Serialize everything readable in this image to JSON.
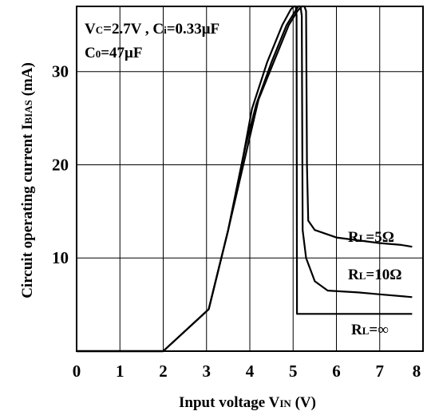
{
  "chart_data": {
    "type": "line",
    "title": "",
    "xlabel": {
      "main": "Input voltage V",
      "sub": "IN",
      "unit": " (V)"
    },
    "ylabel": {
      "main": "Circuit operating current I",
      "sub": "BIAS",
      "unit": " (mA)"
    },
    "xlim": [
      0,
      8
    ],
    "ylim": [
      0,
      37
    ],
    "x_ticks": [
      0,
      1,
      2,
      3,
      4,
      5,
      6,
      7,
      8
    ],
    "y_ticks": [
      10,
      20,
      30
    ],
    "grid": true,
    "annotations": {
      "line1": {
        "a": "V",
        "a_sub": "C",
        "b": "=2.7V , C",
        "b_sub": "i",
        "c": "=0.33μF"
      },
      "line2": {
        "a": "C",
        "a_sub": "0",
        "b": "=47μF"
      }
    },
    "series": [
      {
        "name": "RL=5Ω",
        "label": {
          "main": "R",
          "sub": "L",
          "rest": "=5Ω"
        },
        "points": [
          [
            0,
            0
          ],
          [
            2.0,
            0
          ],
          [
            3.05,
            4.5
          ],
          [
            3.5,
            13
          ],
          [
            3.9,
            21
          ],
          [
            4.2,
            27
          ],
          [
            4.55,
            31
          ],
          [
            4.9,
            35
          ],
          [
            5.1,
            36.5
          ],
          [
            5.2,
            37
          ],
          [
            5.26,
            37
          ],
          [
            5.3,
            36.5
          ],
          [
            5.32,
            20
          ],
          [
            5.35,
            14
          ],
          [
            5.5,
            13
          ],
          [
            6.0,
            12.2
          ],
          [
            6.5,
            11.9
          ],
          [
            7.0,
            11.6
          ],
          [
            7.5,
            11.4
          ],
          [
            7.75,
            11.2
          ]
        ]
      },
      {
        "name": "RL=10Ω",
        "label": {
          "main": "R",
          "sub": "L",
          "rest": "=10Ω"
        },
        "points": [
          [
            0,
            0
          ],
          [
            2.0,
            0
          ],
          [
            3.05,
            4.5
          ],
          [
            3.5,
            13
          ],
          [
            3.9,
            22
          ],
          [
            4.15,
            26.5
          ],
          [
            4.5,
            31
          ],
          [
            4.85,
            35
          ],
          [
            5.05,
            36.5
          ],
          [
            5.12,
            37
          ],
          [
            5.17,
            37
          ],
          [
            5.2,
            36
          ],
          [
            5.22,
            13
          ],
          [
            5.3,
            10
          ],
          [
            5.5,
            7.5
          ],
          [
            5.8,
            6.5
          ],
          [
            6.5,
            6.3
          ],
          [
            7.0,
            6.1
          ],
          [
            7.75,
            5.8
          ]
        ]
      },
      {
        "name": "RL=∞",
        "label": {
          "main": "R",
          "sub": "L",
          "rest": "=∞"
        },
        "points": [
          [
            0,
            0
          ],
          [
            2.0,
            0
          ],
          [
            3.05,
            4.5
          ],
          [
            3.5,
            13
          ],
          [
            3.85,
            21
          ],
          [
            4.05,
            26
          ],
          [
            4.4,
            31
          ],
          [
            4.75,
            35
          ],
          [
            4.95,
            36.7
          ],
          [
            5.02,
            37
          ],
          [
            5.06,
            37
          ],
          [
            5.08,
            36
          ],
          [
            5.09,
            4
          ],
          [
            7.75,
            4
          ]
        ]
      }
    ]
  }
}
